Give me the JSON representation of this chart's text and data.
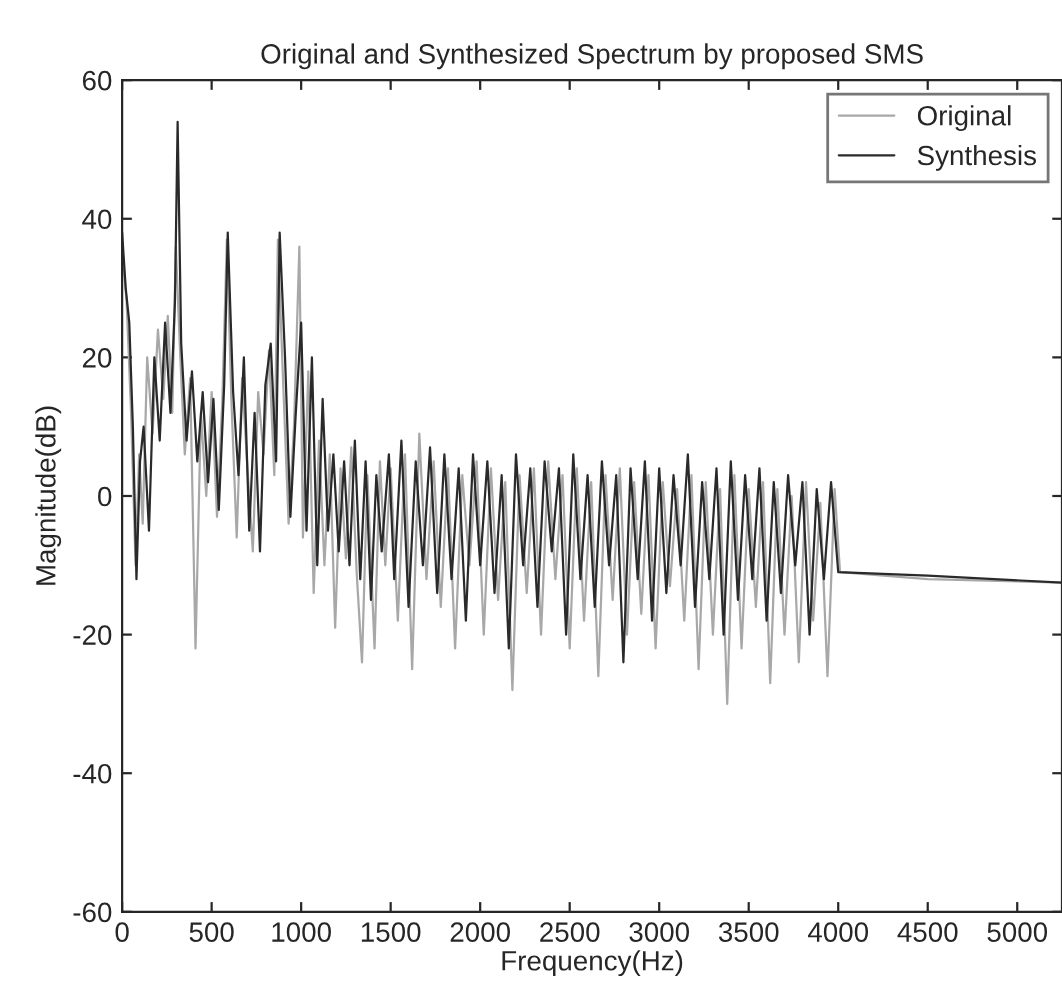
{
  "chart_data": {
    "type": "line",
    "title": "Original and Synthesized Spectrum by proposed SMS",
    "xlabel": "Frequency(Hz)",
    "ylabel": "Magnitude(dB)",
    "series": [
      {
        "name": "Original",
        "color": "#a8a8a8",
        "x": [
          0,
          25,
          50,
          75,
          95,
          115,
          140,
          170,
          200,
          230,
          255,
          280,
          300,
          325,
          350,
          380,
          410,
          440,
          470,
          500,
          530,
          560,
          585,
          610,
          640,
          670,
          700,
          730,
          760,
          790,
          820,
          850,
          870,
          900,
          930,
          960,
          990,
          1010,
          1040,
          1070,
          1100,
          1130,
          1160,
          1190,
          1220,
          1250,
          1280,
          1310,
          1340,
          1370,
          1410,
          1440,
          1470,
          1500,
          1540,
          1580,
          1620,
          1660,
          1700,
          1740,
          1780,
          1820,
          1860,
          1900,
          1940,
          1980,
          2020,
          2060,
          2100,
          2140,
          2180,
          2220,
          2260,
          2300,
          2340,
          2380,
          2420,
          2460,
          2500,
          2540,
          2580,
          2620,
          2660,
          2700,
          2740,
          2780,
          2820,
          2860,
          2900,
          2940,
          2980,
          3020,
          3060,
          3100,
          3140,
          3180,
          3220,
          3260,
          3300,
          3340,
          3380,
          3420,
          3460,
          3500,
          3540,
          3580,
          3620,
          3660,
          3700,
          3740,
          3780,
          3820,
          3860,
          3900,
          3940,
          3980,
          4010,
          4500,
          5250
        ],
        "values": [
          36,
          28,
          12,
          -10,
          6,
          -4,
          20,
          9,
          24,
          14,
          26,
          12,
          36,
          20,
          6,
          17,
          -22,
          12,
          0,
          15,
          -3,
          14,
          37,
          14,
          -6,
          17,
          4,
          -8,
          15,
          6,
          21,
          3,
          37,
          16,
          -4,
          10,
          36,
          -6,
          18,
          -14,
          8,
          -10,
          6,
          -19,
          4,
          -9,
          7,
          -11,
          -24,
          3,
          -22,
          5,
          -10,
          4,
          -18,
          6,
          -25,
          9,
          -12,
          5,
          -16,
          4,
          -22,
          3,
          -10,
          5,
          -20,
          4,
          -15,
          2,
          -28,
          3,
          -14,
          4,
          -20,
          5,
          -12,
          3,
          -22,
          4,
          -18,
          2,
          -26,
          3,
          -15,
          4,
          -20,
          2,
          -17,
          3,
          -22,
          2,
          -13,
          1,
          -18,
          3,
          -25,
          2,
          -20,
          1,
          -30,
          3,
          -22,
          1,
          -16,
          2,
          -27,
          1,
          -20,
          0,
          -24,
          2,
          -18,
          -1,
          -26,
          1,
          -11,
          -12,
          -12.5
        ]
      },
      {
        "name": "Synthesis",
        "color": "#2a2a2a",
        "x": [
          0,
          20,
          40,
          60,
          80,
          100,
          120,
          150,
          180,
          210,
          240,
          270,
          295,
          310,
          330,
          360,
          390,
          420,
          450,
          480,
          510,
          540,
          570,
          590,
          620,
          650,
          680,
          710,
          740,
          770,
          800,
          830,
          860,
          880,
          910,
          940,
          970,
          1000,
          1030,
          1060,
          1090,
          1120,
          1150,
          1180,
          1210,
          1240,
          1270,
          1300,
          1330,
          1360,
          1390,
          1420,
          1450,
          1490,
          1520,
          1560,
          1600,
          1640,
          1680,
          1720,
          1760,
          1800,
          1840,
          1880,
          1920,
          1960,
          2000,
          2040,
          2080,
          2120,
          2160,
          2200,
          2240,
          2280,
          2320,
          2360,
          2400,
          2440,
          2480,
          2520,
          2560,
          2600,
          2640,
          2680,
          2720,
          2760,
          2800,
          2840,
          2880,
          2920,
          2960,
          3000,
          3040,
          3080,
          3120,
          3160,
          3200,
          3240,
          3280,
          3320,
          3360,
          3400,
          3440,
          3480,
          3520,
          3560,
          3600,
          3640,
          3680,
          3720,
          3760,
          3800,
          3840,
          3880,
          3920,
          3960,
          4000,
          4500,
          5250
        ],
        "values": [
          38,
          30,
          25,
          10,
          -12,
          5,
          10,
          -5,
          20,
          8,
          25,
          12,
          28,
          54,
          22,
          8,
          18,
          5,
          15,
          2,
          14,
          -2,
          16,
          38,
          15,
          3,
          20,
          -5,
          12,
          -8,
          16,
          22,
          5,
          38,
          20,
          -3,
          12,
          25,
          -5,
          20,
          -10,
          14,
          -5,
          6,
          -8,
          5,
          -10,
          8,
          -12,
          5,
          -15,
          3,
          -8,
          6,
          -12,
          8,
          -16,
          5,
          -10,
          7,
          -14,
          6,
          -12,
          4,
          -18,
          6,
          -10,
          5,
          -14,
          3,
          -22,
          6,
          -10,
          4,
          -16,
          5,
          -8,
          4,
          -20,
          6,
          -12,
          3,
          -16,
          5,
          -10,
          3,
          -24,
          4,
          -12,
          5,
          -18,
          4,
          -14,
          3,
          -10,
          6,
          -16,
          2,
          -12,
          4,
          -20,
          5,
          -15,
          3,
          -12,
          4,
          -18,
          2,
          -14,
          3,
          -10,
          2,
          -20,
          1,
          -12,
          2,
          -11,
          -11.5,
          -12.5
        ]
      }
    ],
    "xlim": [
      0,
      5250
    ],
    "xticks": [
      0,
      500,
      1000,
      1500,
      2000,
      2500,
      3000,
      3500,
      4000,
      4500,
      5000
    ],
    "ylim": [
      -60,
      60
    ],
    "yticks": [
      -60,
      -40,
      -20,
      0,
      20,
      40,
      60
    ],
    "legend": "top right",
    "line_style": "solid",
    "marker": "none"
  }
}
